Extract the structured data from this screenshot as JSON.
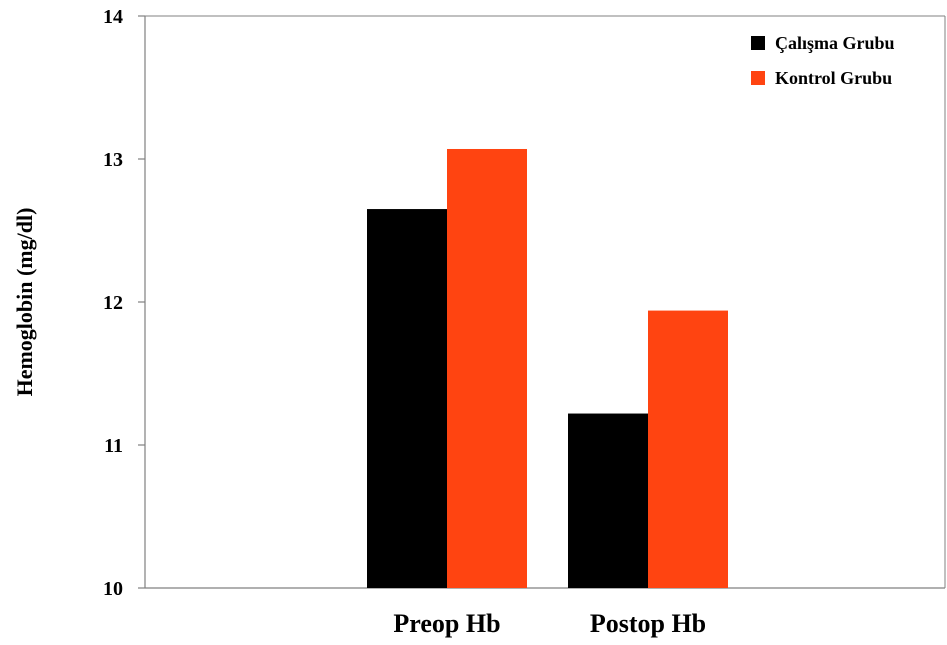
{
  "chart_data": {
    "type": "bar",
    "categories": [
      "Preop Hb",
      "Postop Hb"
    ],
    "series": [
      {
        "name": "Çalışma Grubu",
        "color": "#000000",
        "values": [
          12.65,
          11.22
        ]
      },
      {
        "name": "Kontrol Grubu",
        "color": "#ff4411",
        "values": [
          13.07,
          11.94
        ]
      }
    ],
    "ylabel": "Hemoglobin (mg/dl)",
    "xlabel": "",
    "ylim": [
      10,
      14
    ],
    "yticks": [
      "10",
      "11",
      "12",
      "13",
      "14"
    ],
    "grid": false,
    "legend_position": "top-right"
  }
}
